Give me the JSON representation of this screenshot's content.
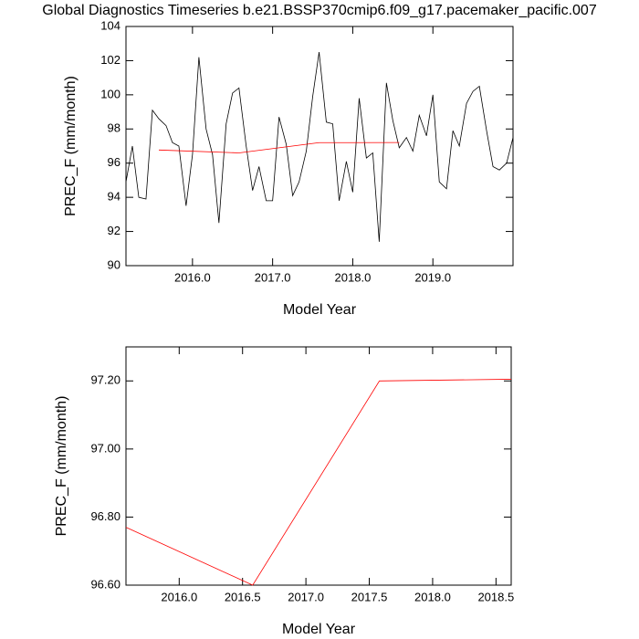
{
  "chart_data": [
    {
      "type": "line",
      "title": "Global Diagnostics Timeseries b.e21.BSSP370cmip6.f09_g17.pacemaker_pacific.007",
      "x_label": "Model Year",
      "y_label": "PREC_F (mm/month)",
      "xlim": [
        2015.17,
        2020.0
      ],
      "ylim": [
        90,
        104
      ],
      "xticks": [
        {
          "value": 2016,
          "label": "2016.0"
        },
        {
          "value": 2017,
          "label": "2017.0"
        },
        {
          "value": 2018,
          "label": "2018.0"
        },
        {
          "value": 2019,
          "label": "2019.0"
        }
      ],
      "yticks": [
        90,
        92,
        94,
        96,
        98,
        100,
        102,
        104
      ],
      "series": [
        {
          "color": "#000000",
          "x": [
            2015.17,
            2015.25,
            2015.33,
            2015.42,
            2015.5,
            2015.58,
            2015.67,
            2015.75,
            2015.83,
            2015.92,
            2016.0,
            2016.08,
            2016.17,
            2016.25,
            2016.33,
            2016.42,
            2016.5,
            2016.58,
            2016.67,
            2016.75,
            2016.83,
            2016.92,
            2017.0,
            2017.08,
            2017.17,
            2017.25,
            2017.33,
            2017.42,
            2017.5,
            2017.58,
            2017.67,
            2017.75,
            2017.83,
            2017.92,
            2018.0,
            2018.08,
            2018.17,
            2018.25,
            2018.33,
            2018.42,
            2018.5,
            2018.58,
            2018.67,
            2018.75,
            2018.83,
            2018.92,
            2019.0,
            2019.08,
            2019.17,
            2019.25,
            2019.33,
            2019.42,
            2019.5,
            2019.58,
            2019.67,
            2019.75,
            2019.83,
            2019.92,
            2020.0
          ],
          "values": [
            94.9,
            97.0,
            94.0,
            93.9,
            99.1,
            98.6,
            98.2,
            97.2,
            97.0,
            93.5,
            96.5,
            102.2,
            98.0,
            96.5,
            92.5,
            98.3,
            100.1,
            100.4,
            97.0,
            94.4,
            95.8,
            93.8,
            93.8,
            98.7,
            97.1,
            94.1,
            94.9,
            96.7,
            99.9,
            102.5,
            98.4,
            98.3,
            93.8,
            96.1,
            94.3,
            99.8,
            96.3,
            96.6,
            91.4,
            100.7,
            98.5,
            96.9,
            97.5,
            96.7,
            98.8,
            97.6,
            100.0,
            94.9,
            94.5,
            97.9,
            97.0,
            99.5,
            100.2,
            100.5,
            97.9,
            95.8,
            95.6,
            96.0,
            97.5
          ]
        },
        {
          "color": "#ff0000",
          "x": [
            2015.58,
            2016.58,
            2017.58,
            2018.58
          ],
          "values": [
            96.77,
            96.6,
            97.2,
            97.205
          ]
        }
      ]
    },
    {
      "type": "line",
      "x_label": "Model Year",
      "y_label": "PREC_F (mm/month)",
      "xlim": [
        2015.58,
        2018.62
      ],
      "ylim": [
        96.6,
        97.3
      ],
      "xticks": [
        {
          "value": 2016,
          "label": "2016.0"
        },
        {
          "value": 2016.5,
          "label": "2016.5"
        },
        {
          "value": 2017,
          "label": "2017.0"
        },
        {
          "value": 2017.5,
          "label": "2017.5"
        },
        {
          "value": 2018,
          "label": "2018.0"
        },
        {
          "value": 2018.5,
          "label": "2018.5"
        }
      ],
      "yticks": [
        {
          "value": 96.6,
          "label": "96.60"
        },
        {
          "value": 96.8,
          "label": "96.80"
        },
        {
          "value": 97.0,
          "label": "97.00"
        },
        {
          "value": 97.2,
          "label": "97.20"
        }
      ],
      "series": [
        {
          "color": "#ff0000",
          "x": [
            2015.58,
            2016.58,
            2017.58,
            2018.62
          ],
          "values": [
            96.77,
            96.6,
            97.2,
            97.205
          ]
        }
      ]
    }
  ]
}
